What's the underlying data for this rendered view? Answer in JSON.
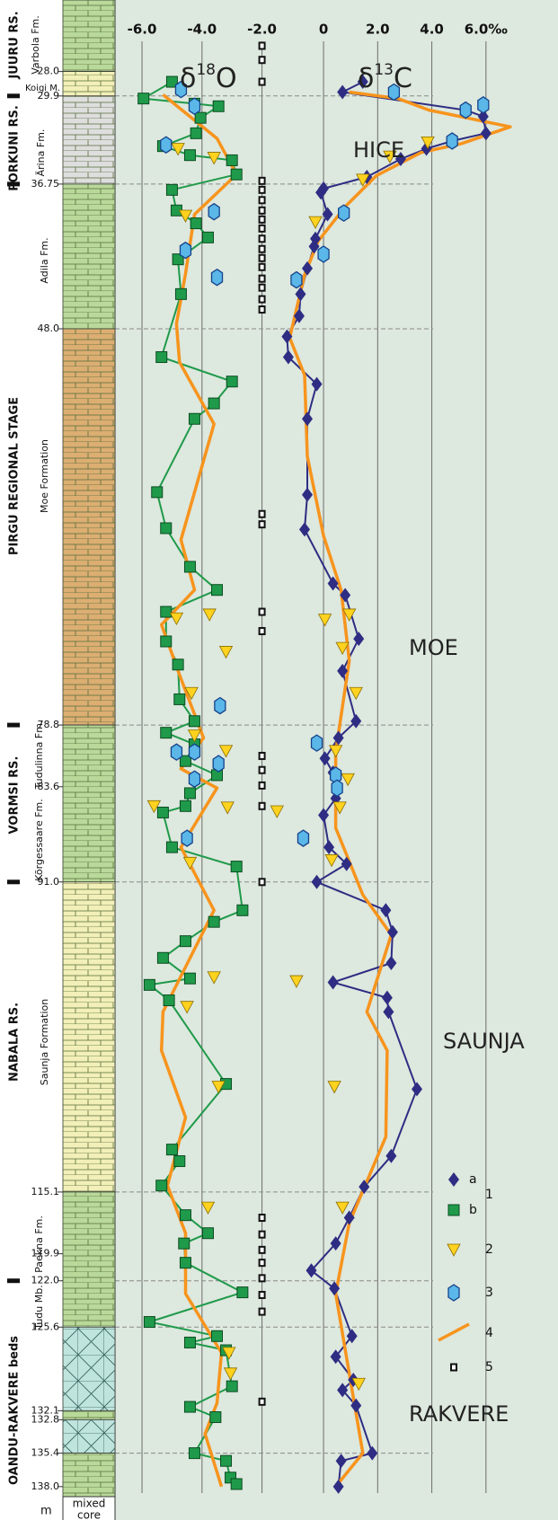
{
  "chart_data": {
    "type": "scatter",
    "ylim": [
      23,
      138.5
    ],
    "xlim": [
      -6.9,
      -0.4
    ],
    "x2lim": [
      -0.5,
      7.3
    ],
    "xticks": [
      {
        "value": -6,
        "label": "-6.0"
      },
      {
        "value": -4,
        "label": "-4.0"
      },
      {
        "value": -2,
        "label": "-2.0"
      }
    ],
    "x2ticks": [
      0,
      {
        "value": 2,
        "label": "2.0"
      },
      {
        "value": 4,
        "label": "4.0"
      },
      {
        "value": 6,
        "label": "6.0‰"
      }
    ],
    "yticks": [
      {
        "value": 28,
        "label": "28.0"
      },
      29.9,
      36.75,
      {
        "value": 48,
        "label": "48.0"
      },
      78.8,
      83.6,
      {
        "value": 91,
        "label": "91.0"
      },
      115.1,
      119.9,
      {
        "value": 122,
        "label": "122.0"
      },
      125.6,
      132.1,
      132.8,
      135.4,
      {
        "value": 138,
        "label": "138.0"
      }
    ],
    "dashed_lines": [
      29.9,
      36.75,
      48.0,
      78.8,
      91.0,
      115.1,
      122.0,
      125.6,
      135.4
    ],
    "boundaries": [
      29.9,
      36.75,
      78.8,
      91.0,
      122.0
    ],
    "grid": true,
    "x_label": [
      "δ",
      "18",
      "O"
    ],
    "x2_label": [
      "δ",
      "13",
      "C"
    ],
    "y_unit": "m",
    "core_label": [
      "mixed",
      "core"
    ],
    "zones": [
      "HICE",
      "MOE",
      "SAUNJA",
      "RAKVERE"
    ],
    "units": [
      "JUURU RS.",
      "Varbola Fm.",
      "Koigi M.",
      "PORKUNI RS.",
      "Ärina Fm.",
      "Adila Fm.",
      "PIRGU REGIONAL STAGE",
      "Moe Formation",
      "VORMSI RS.",
      "Tudulinna Fm.",
      "Kõrgessaare Fm.",
      "NABALA RS.",
      "Saunja Formation",
      "Paekna Fm.",
      "Tudu Mb.",
      "OANDU-RAKVERE beds"
    ],
    "legend_group": "1",
    "series": [
      {
        "name": "a",
        "marker": "diamond",
        "color": "#2e2d83",
        "line": true,
        "x2": [
          1.45,
          0.7,
          5.25,
          5.9,
          6.0,
          4.75,
          3.8,
          2.85,
          1.6,
          0,
          -0.1,
          0.15,
          -0.3,
          -0.35,
          -0.6,
          -0.85,
          -0.9,
          -1.35,
          -1.3,
          -0.25,
          -0.6,
          -0.6,
          -0.7,
          0.35,
          0.8,
          1.3,
          0.7,
          1.2,
          0.55,
          0.05,
          0.35,
          0.45,
          0,
          0.2,
          0.85,
          -0.25,
          2.3,
          2.55,
          2.5,
          0.35,
          2.35,
          2.4,
          3.45,
          2.5,
          1.5,
          0.95,
          0.45,
          -0.45,
          0.4,
          1.05,
          0.45,
          1.1,
          0.7,
          1.2,
          1.8,
          0.65,
          0.55
        ],
        "depth2": [
          28.8,
          29.6,
          31,
          31.5,
          32.8,
          33.4,
          34,
          34.8,
          36.2,
          37.1,
          37.4,
          39.1,
          41,
          41.6,
          43.3,
          45.3,
          47,
          48.6,
          50.2,
          52.3,
          55,
          60.9,
          63.6,
          67.8,
          68.7,
          72.1,
          74.6,
          78.5,
          79.8,
          81.4,
          82.5,
          84.5,
          85.8,
          88.3,
          89.6,
          91,
          93.2,
          94.9,
          97.3,
          98.8,
          100,
          101.1,
          107.1,
          112.3,
          114.7,
          117.1,
          119.1,
          121.2,
          122.6,
          126.3,
          127.9,
          129.7,
          130.5,
          131.7,
          135.4,
          136,
          138
        ]
      },
      {
        "name": "b",
        "marker": "square",
        "color": "#1f9a4a",
        "line": true,
        "x": [
          -5.0,
          -5.95,
          -4.25,
          -3.45,
          -4.05,
          -4.2,
          -5.3,
          -4.4,
          -3.0,
          -2.85,
          -5.0,
          -4.85,
          -4.2,
          -3.8,
          -4.8,
          -4.7,
          -5.35,
          -3.0,
          -3.6,
          -4.25,
          -5.5,
          -5.2,
          -4.4,
          -3.5,
          -5.2,
          -5.2,
          -4.8,
          -4.75,
          -4.25,
          -5.2,
          -4.25,
          -4.55,
          -3.5,
          -4.4,
          -4.55,
          -5.3,
          -5.0,
          -2.85,
          -2.65,
          -3.6,
          -4.55,
          -5.3,
          -4.4,
          -5.75,
          -5.1,
          -3.2,
          -5.0,
          -4.75,
          -5.35,
          -4.55,
          -3.8,
          -4.6,
          -4.55,
          -2.65,
          -5.75,
          -3.5,
          -4.4,
          -3.2,
          -3.0,
          -4.4,
          -3.55,
          -4.25,
          -3.2,
          -3.05,
          -2.85
        ],
        "depth": [
          28.8,
          30.1,
          30.5,
          30.7,
          31.6,
          32.8,
          33.8,
          34.5,
          34.9,
          36.0,
          37.2,
          38.8,
          39.8,
          40.9,
          42.6,
          45.3,
          50.2,
          52.1,
          53.8,
          55,
          60.7,
          63.5,
          66.5,
          68.3,
          70,
          72.3,
          74.1,
          76.8,
          78.5,
          79.4,
          80.3,
          81.6,
          82.7,
          84.1,
          85.1,
          85.6,
          88.3,
          89.8,
          93.2,
          94.1,
          95.6,
          96.9,
          98.5,
          99,
          100.2,
          106.7,
          111.8,
          112.7,
          114.6,
          116.9,
          118.3,
          119.1,
          120.6,
          122.9,
          125.2,
          126.3,
          126.8,
          127.4,
          130.2,
          131.8,
          132.6,
          135.4,
          136,
          137.3,
          137.8
        ]
      },
      {
        "name": "2",
        "marker": "triangle",
        "color": "#ffd21f",
        "line": false,
        "x": [
          -4.8,
          -3.6,
          -4.55,
          -4.85,
          -3.75,
          -3.2,
          -4.35,
          -4.25,
          -3.2,
          -5.6,
          -3.15,
          -1.5,
          -4.4,
          -3.6,
          -4.5,
          -3.45,
          -3.8,
          -3.1,
          -3.05
        ],
        "depth": [
          34,
          34.7,
          39.2,
          70.5,
          70.2,
          73.1,
          76.3,
          79.6,
          80.8,
          85.1,
          85.2,
          85.5,
          89.5,
          98.4,
          100.7,
          106.9,
          116.3,
          127.6,
          129.2
        ],
        "x2": [
          1.45,
          2.45,
          3.85,
          -0.3,
          0.05,
          0.95,
          0.7,
          1.2,
          0.45,
          0.9,
          0.6,
          0.3,
          -1.0,
          0.4,
          0.7,
          1.3
        ],
        "depth2": [
          36.4,
          34.6,
          33.5,
          39.7,
          70.6,
          70.2,
          72.8,
          76.3,
          80.8,
          83.0,
          85.2,
          89.3,
          98.7,
          106.9,
          116.3,
          130.0
        ]
      },
      {
        "name": "3",
        "marker": "hexagon",
        "color": "#5ab7e8",
        "line": false,
        "x": [
          -4.7,
          -4.25,
          -5.2,
          -3.6,
          -4.55,
          -3.5,
          -3.4,
          -4.85,
          -4.25,
          -3.45,
          -4.25,
          -4.5
        ],
        "depth": [
          29.4,
          30.7,
          33.7,
          38.9,
          41.9,
          44.0,
          77.3,
          80.9,
          80.9,
          81.8,
          83.0,
          87.6
        ],
        "x2": [
          2.6,
          5.25,
          5.9,
          4.75,
          0.75,
          0,
          -1.0,
          -0.25,
          0.45,
          0.5,
          -0.75
        ],
        "depth2": [
          29.6,
          31,
          30.6,
          33.4,
          39,
          42.2,
          44.2,
          80.2,
          82.7,
          83.7,
          87.6
        ]
      },
      {
        "name": "4",
        "marker": "none",
        "color": "#f7941d",
        "line": true,
        "x": [
          -5.3,
          -3.5,
          -2.85,
          -4.25,
          -4.55,
          -4.85,
          -4.75,
          -3.6,
          -4.7,
          -4.25,
          -5.35,
          -4.7,
          -3.95,
          -4.7,
          -3.5,
          -4.7,
          -3.6,
          -5.3,
          -5.35,
          -4.55,
          -5.15,
          -4.55,
          -4.55,
          -3.35,
          -3.5,
          -3.9,
          -3.35
        ],
        "depth": [
          29.8,
          33.2,
          36.0,
          39.1,
          43.7,
          47.6,
          50.6,
          55.4,
          64.4,
          68.3,
          71,
          75.2,
          79.8,
          82.2,
          83.7,
          88.3,
          93.2,
          101.1,
          104.1,
          109.3,
          114.6,
          118.3,
          123,
          127.6,
          131.5,
          133.9,
          138
        ],
        "x2": [
          0.95,
          2.75,
          3.9,
          6.9,
          5.1,
          3.6,
          1.95,
          0.8,
          -0.2,
          -0.7,
          -1.25,
          -0.7,
          -0.6,
          0,
          0.65,
          0.95,
          0.45,
          0.45,
          1.45,
          2.5,
          1.6,
          2.35,
          2.3,
          0.95,
          0.45,
          0.95,
          1.45,
          0.45
        ],
        "depth2": [
          29.6,
          30.1,
          31,
          32.3,
          33.6,
          34.3,
          36.1,
          38.5,
          41.2,
          43.8,
          48.7,
          51.6,
          57.9,
          64.1,
          68.3,
          73.8,
          80.9,
          86.8,
          92,
          95.1,
          101.1,
          104.1,
          110.8,
          117.5,
          123,
          129.2,
          135.4,
          138
        ]
      },
      {
        "name": "5",
        "marker": "sample",
        "color": "#ffffff",
        "line": false,
        "x": -2,
        "depth": [
          26,
          27.1,
          28.8,
          36.5,
          37.2,
          38,
          38.8,
          39.5,
          40.2,
          41,
          41.8,
          42.5,
          43.2,
          44.1,
          44.8,
          45.7,
          46.5,
          62.4,
          63.2,
          70,
          71.5,
          81.2,
          82.3,
          83.5,
          85.1,
          91,
          117.1,
          118.4,
          119.6,
          120.6,
          121.8,
          123.1,
          124.4,
          131.4
        ]
      }
    ]
  }
}
